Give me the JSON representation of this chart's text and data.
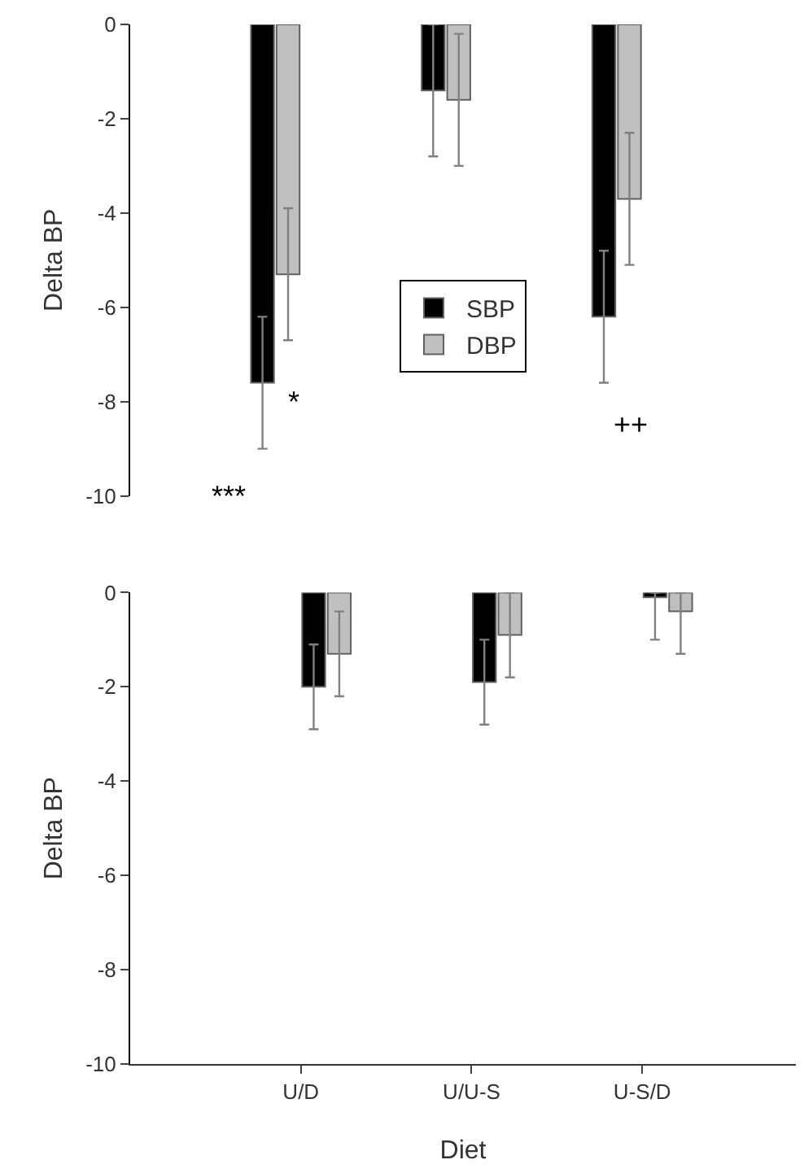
{
  "chart_data": [
    {
      "type": "bar",
      "ylabel": "Delta BP",
      "categories": [
        "U/D",
        "U/U-S",
        "U-S/D"
      ],
      "tick_labels": "y",
      "legend": "center",
      "grid": false,
      "ylim": [
        -10,
        0
      ],
      "yticks": [
        0,
        -2,
        -4,
        -6,
        -8,
        -10
      ],
      "series": [
        {
          "name": "SBP",
          "color": "#000000",
          "values": [
            -7.6,
            -1.4,
            -6.2
          ],
          "errors": [
            1.4,
            1.4,
            1.4
          ]
        },
        {
          "name": "DBP",
          "color": "#c0c0c0",
          "values": [
            -5.3,
            -1.6,
            -3.7
          ],
          "errors": [
            1.4,
            1.4,
            1.4
          ]
        }
      ],
      "annotations": [
        "***",
        "*",
        "++"
      ]
    },
    {
      "type": "bar",
      "ylabel": "Delta BP",
      "xlabel": "Diet",
      "categories": [
        "U/D",
        "U/U-S",
        "U-S/D"
      ],
      "legend": false,
      "grid": false,
      "ylim": [
        -10,
        0
      ],
      "yticks": [
        0,
        -2,
        -4,
        -6,
        -8,
        -10
      ],
      "series": [
        {
          "color": "#000000",
          "values": [
            -2.0,
            -1.9,
            -0.1
          ],
          "errors": [
            0.9,
            0.9,
            [
              -1.0,
              0
            ]
          ]
        },
        {
          "color": "#c0c0c0",
          "values": [
            -1.3,
            -0.9,
            -0.4
          ],
          "errors": [
            0.9,
            0.9,
            [
              -1.3,
              0
            ]
          ]
        }
      ]
    }
  ]
}
